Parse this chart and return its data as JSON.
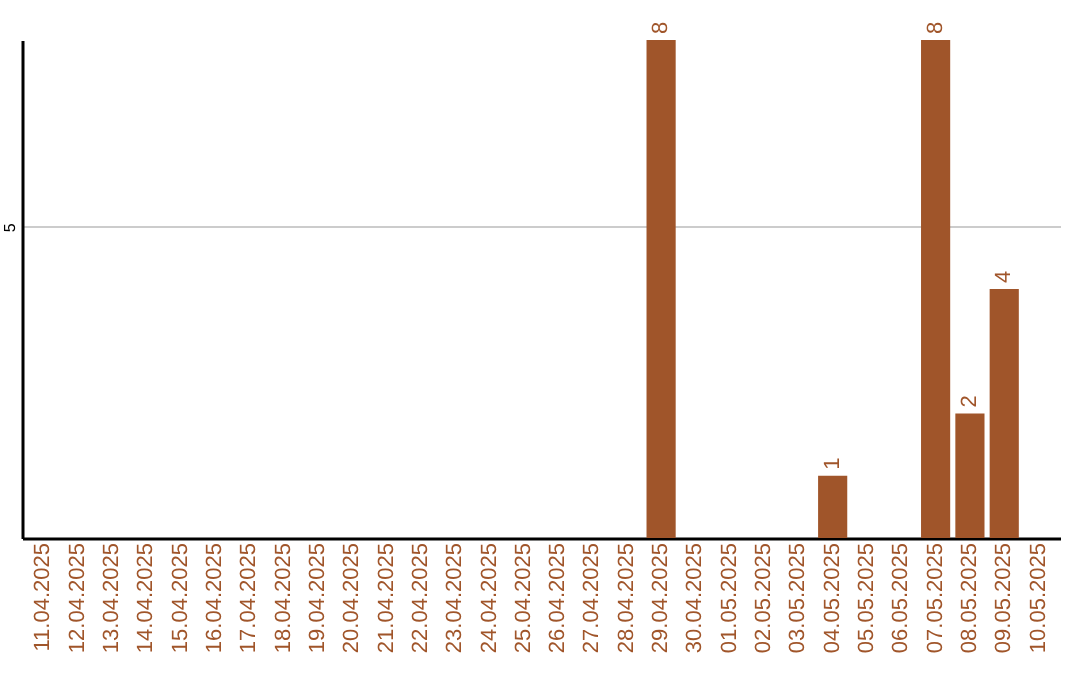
{
  "chart_data": {
    "type": "bar",
    "categories": [
      "11.04.2025",
      "12.04.2025",
      "13.04.2025",
      "14.04.2025",
      "15.04.2025",
      "16.04.2025",
      "17.04.2025",
      "18.04.2025",
      "19.04.2025",
      "20.04.2025",
      "21.04.2025",
      "22.04.2025",
      "23.04.2025",
      "24.04.2025",
      "25.04.2025",
      "26.04.2025",
      "27.04.2025",
      "28.04.2025",
      "29.04.2025",
      "30.04.2025",
      "01.05.2025",
      "02.05.2025",
      "03.05.2025",
      "04.05.2025",
      "05.05.2025",
      "06.05.2025",
      "07.05.2025",
      "08.05.2025",
      "09.05.2025",
      "10.05.2025"
    ],
    "values": [
      null,
      null,
      null,
      null,
      null,
      null,
      null,
      null,
      null,
      null,
      null,
      null,
      null,
      null,
      null,
      null,
      null,
      null,
      8,
      null,
      null,
      null,
      null,
      1,
      null,
      null,
      8,
      2,
      4,
      null
    ],
    "color": "#a0552a",
    "ylim": [
      0,
      8
    ],
    "yticks": [
      5
    ],
    "grid": "y",
    "data_labels": true
  }
}
